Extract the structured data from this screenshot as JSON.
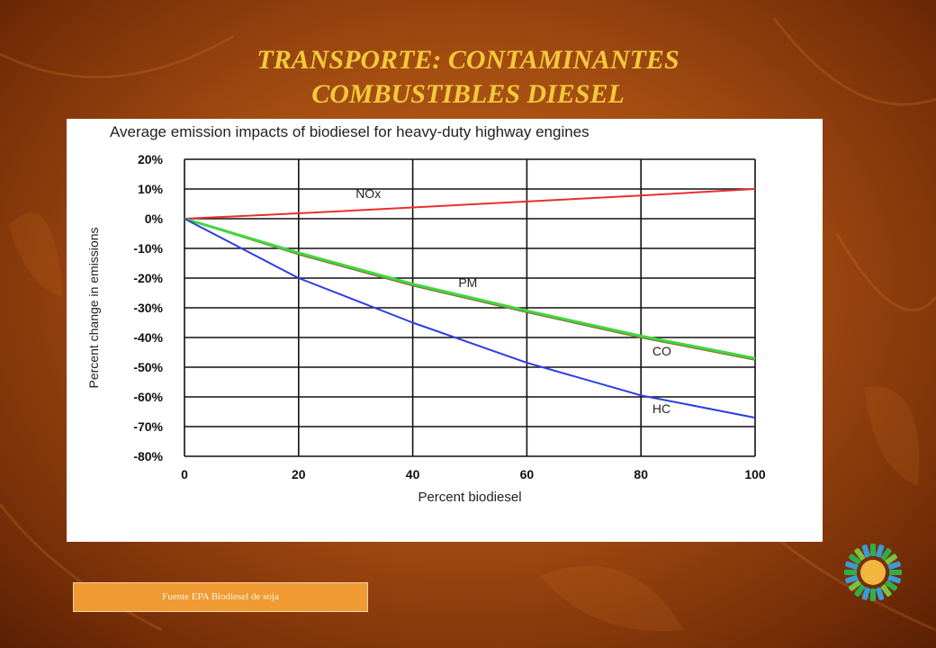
{
  "slide": {
    "title_line1": "TRANSPORTE: CONTAMINANTES",
    "title_line2": "COMBUSTIBLES DIESEL",
    "source": "Fuente EPA Biodiesel de soja",
    "logo_icon": "recycling-ring-logo-icon"
  },
  "colors": {
    "title": "#f3c93b",
    "background": "#a44d12",
    "source_box": "#ef9a33",
    "nox": "#e83030",
    "pm": "#8a6a3a",
    "co": "#3fd83f",
    "hc": "#2a3ee0"
  },
  "chart_data": {
    "type": "line",
    "title": "Average emission impacts of biodiesel for heavy-duty highway engines",
    "xlabel": "Percent biodiesel",
    "ylabel": "Percent change in emissions",
    "xlim": [
      0,
      100
    ],
    "ylim": [
      -80,
      20
    ],
    "xticks": [
      0,
      20,
      40,
      60,
      80,
      100
    ],
    "yticks": [
      20,
      10,
      0,
      -10,
      -20,
      -30,
      -40,
      -50,
      -60,
      -70,
      -80
    ],
    "ytick_labels": [
      "20%",
      "10%",
      "0%",
      "-10%",
      "-20%",
      "-30%",
      "-40%",
      "-50%",
      "-60%",
      "-70%",
      "-80%"
    ],
    "xtick_labels": [
      "0",
      "20",
      "40",
      "60",
      "80",
      "100"
    ],
    "grid": true,
    "series": [
      {
        "name": "NOx",
        "color": "#e83030",
        "x": [
          0,
          20,
          40,
          60,
          80,
          100
        ],
        "values": [
          0,
          1.8,
          3.8,
          5.8,
          7.8,
          10
        ]
      },
      {
        "name": "PM",
        "color": "#8a6a3a",
        "x": [
          0,
          20,
          40,
          60,
          80,
          100
        ],
        "values": [
          0,
          -12,
          -22.5,
          -31.5,
          -40,
          -47.5
        ]
      },
      {
        "name": "CO",
        "color": "#3fd83f",
        "x": [
          0,
          20,
          40,
          60,
          80,
          100
        ],
        "values": [
          0,
          -11.5,
          -22,
          -31,
          -39.5,
          -47
        ]
      },
      {
        "name": "HC",
        "color": "#2a3ee0",
        "x": [
          0,
          20,
          40,
          60,
          80,
          100
        ],
        "values": [
          0,
          -20,
          -35,
          -48.5,
          -59.5,
          -67
        ]
      }
    ],
    "annotations": [
      {
        "text": "NOx",
        "x": 30,
        "y": 7
      },
      {
        "text": "PM",
        "x": 48,
        "y": -23
      },
      {
        "text": "CO",
        "x": 82,
        "y": -46
      },
      {
        "text": "HC",
        "x": 82,
        "y": -65.5
      }
    ]
  }
}
